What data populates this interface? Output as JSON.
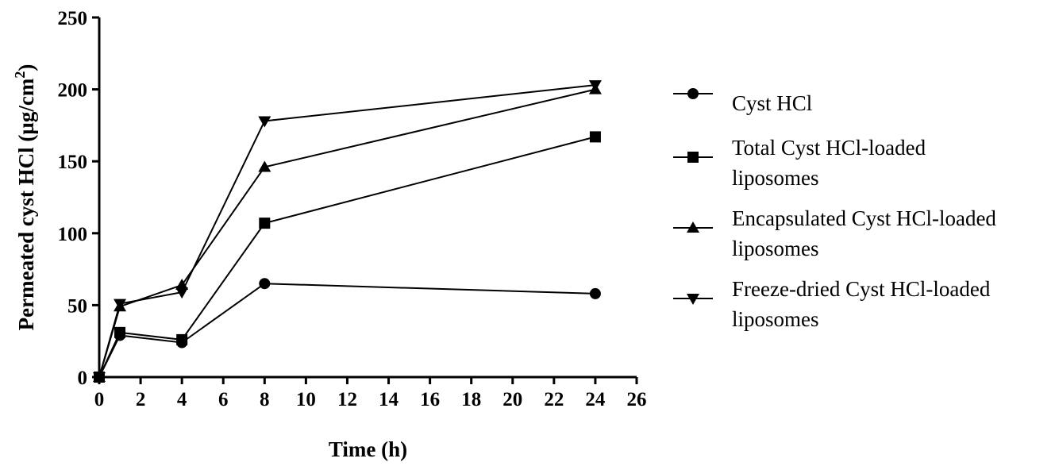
{
  "chart_data": {
    "type": "line",
    "title": "",
    "xlabel": "Time (h)",
    "ylabel": "Permeated cyst HCl (µg/cm",
    "ylabel_sup": "2",
    "ylabel_end": ")",
    "xlim": [
      0,
      26
    ],
    "ylim": [
      0,
      250
    ],
    "xticks": [
      0,
      2,
      4,
      6,
      8,
      10,
      12,
      14,
      16,
      18,
      20,
      22,
      24,
      26
    ],
    "yticks": [
      0,
      50,
      100,
      150,
      200,
      250
    ],
    "grid": false,
    "legend_position": "right",
    "series": [
      {
        "name": "Cyst HCl",
        "marker": "circle",
        "legend_lines": [
          "Cyst HCl"
        ],
        "x": [
          0,
          1,
          4,
          8,
          24
        ],
        "y": [
          0,
          29,
          24,
          65,
          58
        ]
      },
      {
        "name": "Total Cyst HCl-loaded liposomes",
        "marker": "square",
        "legend_lines": [
          "Total Cyst HCl-loaded",
          "liposomes"
        ],
        "x": [
          0,
          1,
          4,
          8,
          24
        ],
        "y": [
          0,
          31,
          26,
          107,
          167
        ]
      },
      {
        "name": "Encapsulated Cyst HCl-loaded liposomes",
        "marker": "triangle-up",
        "legend_lines": [
          "Encapsulated Cyst HCl-loaded",
          "liposomes"
        ],
        "x": [
          0,
          1,
          4,
          8,
          24
        ],
        "y": [
          0,
          49,
          64,
          146,
          200
        ]
      },
      {
        "name": "Freeze-dried Cyst HCl-loaded liposomes",
        "marker": "triangle-down",
        "legend_lines": [
          "Freeze-dried Cyst HCl-loaded",
          "liposomes"
        ],
        "x": [
          0,
          1,
          4,
          8,
          24
        ],
        "y": [
          0,
          51,
          59,
          178,
          203
        ]
      }
    ]
  }
}
